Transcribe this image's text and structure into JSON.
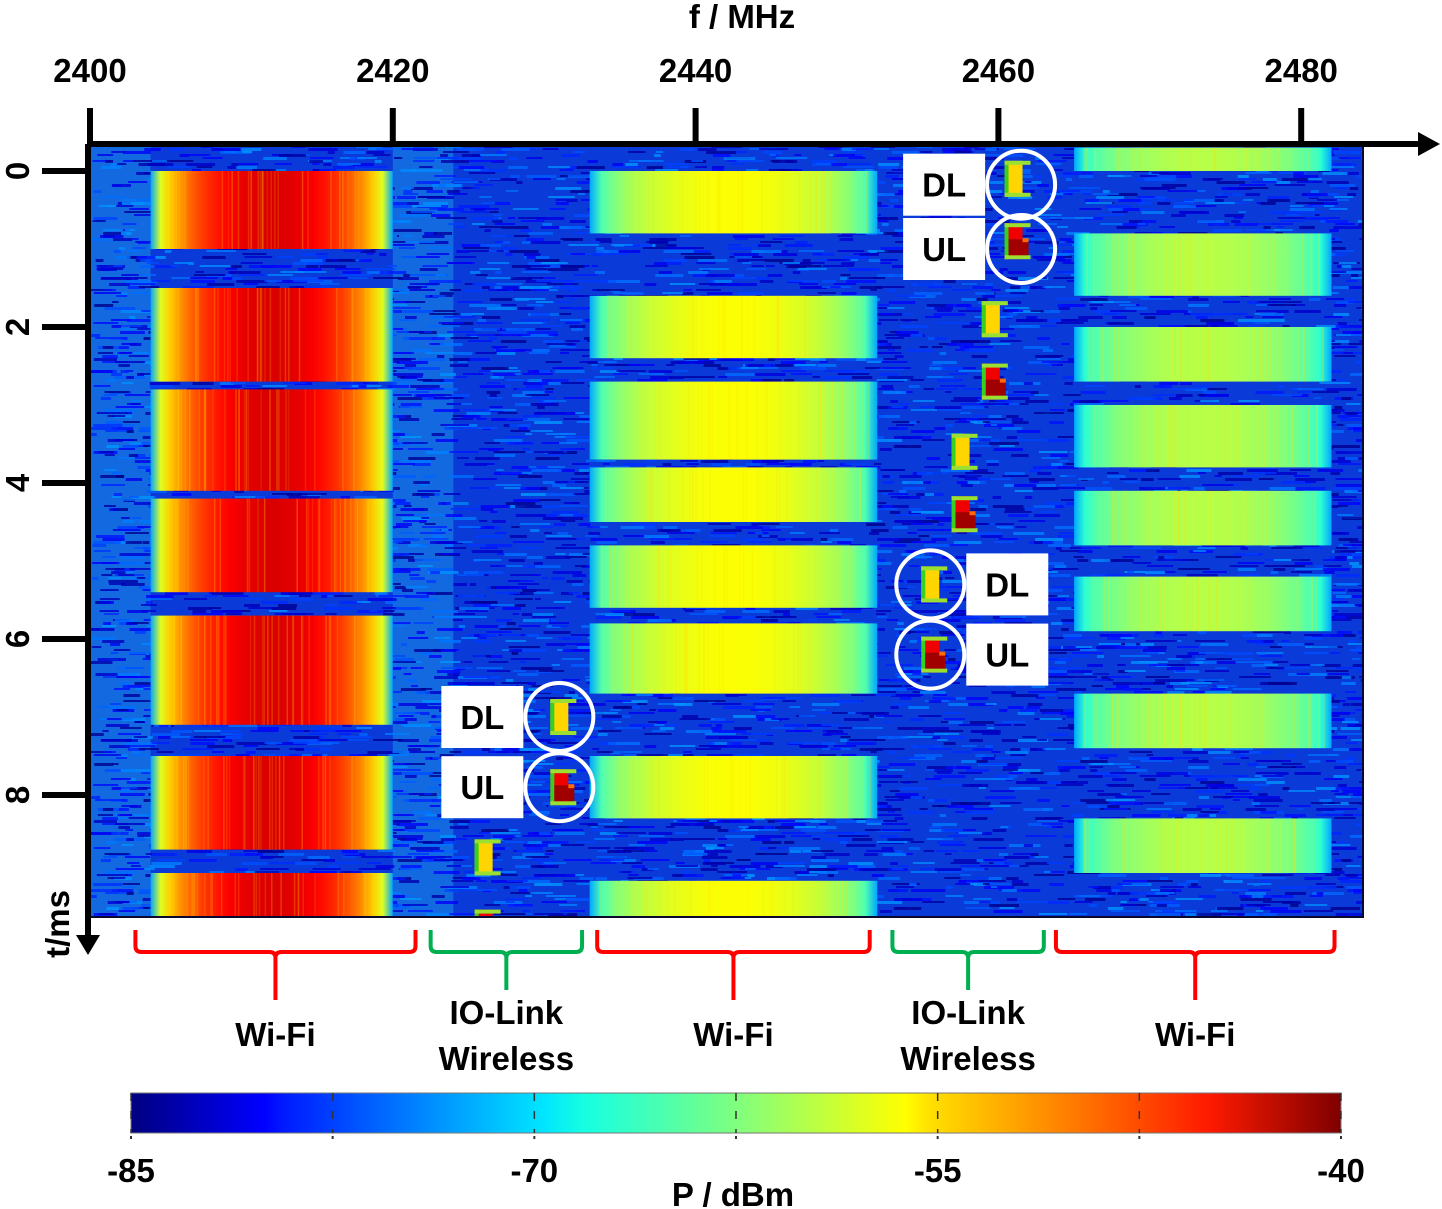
{
  "chart_data": {
    "type": "heatmap",
    "title": "",
    "x_axis": {
      "label": "f / MHz",
      "range": [
        2400,
        2484
      ],
      "ticks": [
        2400,
        2420,
        2440,
        2460,
        2480
      ],
      "tick_labels": [
        "2400",
        "2420",
        "2440",
        "2460",
        "2480"
      ],
      "position": "top"
    },
    "y_axis": {
      "label": "t/ms",
      "range": [
        0,
        9.8
      ],
      "ticks": [
        0,
        2,
        4,
        6,
        8
      ],
      "tick_labels": [
        "0",
        "2",
        "4",
        "6",
        "8"
      ],
      "direction": "downward"
    },
    "colorbar": {
      "label": "P / dBm",
      "range": [
        -85,
        -40
      ],
      "ticks": [
        -85,
        -77.5,
        -70,
        -62.5,
        -55,
        -47.5,
        -40
      ],
      "tick_labels": [
        "-85",
        "-70",
        "-55",
        "-40"
      ],
      "colormap": "jet",
      "position": "bottom"
    },
    "noise_floor_dbm": -78,
    "series": [
      {
        "name": "Wi-Fi",
        "f_range_mhz": [
          2404,
          2420
        ],
        "level_dbm": -44,
        "bursts_ms": [
          [
            0,
            1.0
          ],
          [
            1.5,
            2.7
          ],
          [
            2.8,
            4.1
          ],
          [
            4.2,
            5.4
          ],
          [
            5.7,
            7.1
          ],
          [
            7.5,
            8.7
          ],
          [
            9.0,
            9.8
          ]
        ]
      },
      {
        "name": "Wi-Fi",
        "f_range_mhz": [
          2433,
          2452
        ],
        "level_dbm": -57,
        "bursts_ms": [
          [
            0,
            0.8
          ],
          [
            1.6,
            2.4
          ],
          [
            2.7,
            3.7
          ],
          [
            3.8,
            4.5
          ],
          [
            4.8,
            5.6
          ],
          [
            5.8,
            6.7
          ],
          [
            7.5,
            8.3
          ],
          [
            9.1,
            9.8
          ]
        ]
      },
      {
        "name": "Wi-Fi",
        "f_range_mhz": [
          2465,
          2482
        ],
        "level_dbm": -60,
        "bursts_ms": [
          [
            -0.3,
            0.0
          ],
          [
            0.8,
            1.6
          ],
          [
            2.0,
            2.7
          ],
          [
            3.0,
            3.8
          ],
          [
            4.1,
            4.8
          ],
          [
            5.2,
            5.9
          ],
          [
            6.7,
            7.4
          ],
          [
            8.3,
            9.0
          ]
        ]
      },
      {
        "name": "IO-Link Wireless",
        "kind": "hopping-bursts",
        "points": [
          {
            "type": "DL",
            "t_ms": 7.0,
            "f_mhz": 2431
          },
          {
            "type": "UL",
            "t_ms": 7.9,
            "f_mhz": 2431
          },
          {
            "type": "DL",
            "t_ms": 8.8,
            "f_mhz": 2426
          },
          {
            "type": "UL",
            "t_ms": 9.7,
            "f_mhz": 2426
          },
          {
            "type": "DL",
            "t_ms": 0.1,
            "f_mhz": 2461
          },
          {
            "type": "UL",
            "t_ms": 0.9,
            "f_mhz": 2461
          },
          {
            "type": "DL",
            "t_ms": 1.9,
            "f_mhz": 2459.5
          },
          {
            "type": "UL",
            "t_ms": 2.7,
            "f_mhz": 2459.5
          },
          {
            "type": "DL",
            "t_ms": 3.6,
            "f_mhz": 2457.5
          },
          {
            "type": "UL",
            "t_ms": 4.4,
            "f_mhz": 2457.5
          },
          {
            "type": "DL",
            "t_ms": 5.3,
            "f_mhz": 2455.5
          },
          {
            "type": "UL",
            "t_ms": 6.2,
            "f_mhz": 2455.5
          }
        ]
      }
    ],
    "bands": [
      {
        "label": "Wi-Fi",
        "f_range_mhz": [
          2403,
          2421.5
        ],
        "color": "#ff0000"
      },
      {
        "label": "IO-Link\nWireless",
        "label_lines": [
          "IO-Link",
          "Wireless"
        ],
        "f_range_mhz": [
          2422.5,
          2432.5
        ],
        "color": "#00b050"
      },
      {
        "label": "Wi-Fi",
        "f_range_mhz": [
          2433.5,
          2451.5
        ],
        "color": "#ff0000"
      },
      {
        "label": "IO-Link\nWireless",
        "label_lines": [
          "IO-Link",
          "Wireless"
        ],
        "f_range_mhz": [
          2453,
          2463
        ],
        "color": "#00b050"
      },
      {
        "label": "Wi-Fi",
        "f_range_mhz": [
          2463.8,
          2482.2
        ],
        "color": "#ff0000"
      }
    ],
    "annotations": [
      {
        "text": "DL",
        "t_ms": 0.15,
        "f_mhz": 2461.5,
        "side": "left"
      },
      {
        "text": "UL",
        "t_ms": 1.0,
        "f_mhz": 2461.5,
        "side": "left"
      },
      {
        "text": "DL",
        "t_ms": 5.3,
        "f_mhz": 2455.5,
        "side": "right"
      },
      {
        "text": "UL",
        "t_ms": 6.2,
        "f_mhz": 2455.5,
        "side": "right"
      },
      {
        "text": "DL",
        "t_ms": 7.0,
        "f_mhz": 2431,
        "side": "left"
      },
      {
        "text": "UL",
        "t_ms": 7.9,
        "f_mhz": 2431,
        "side": "left"
      }
    ]
  }
}
